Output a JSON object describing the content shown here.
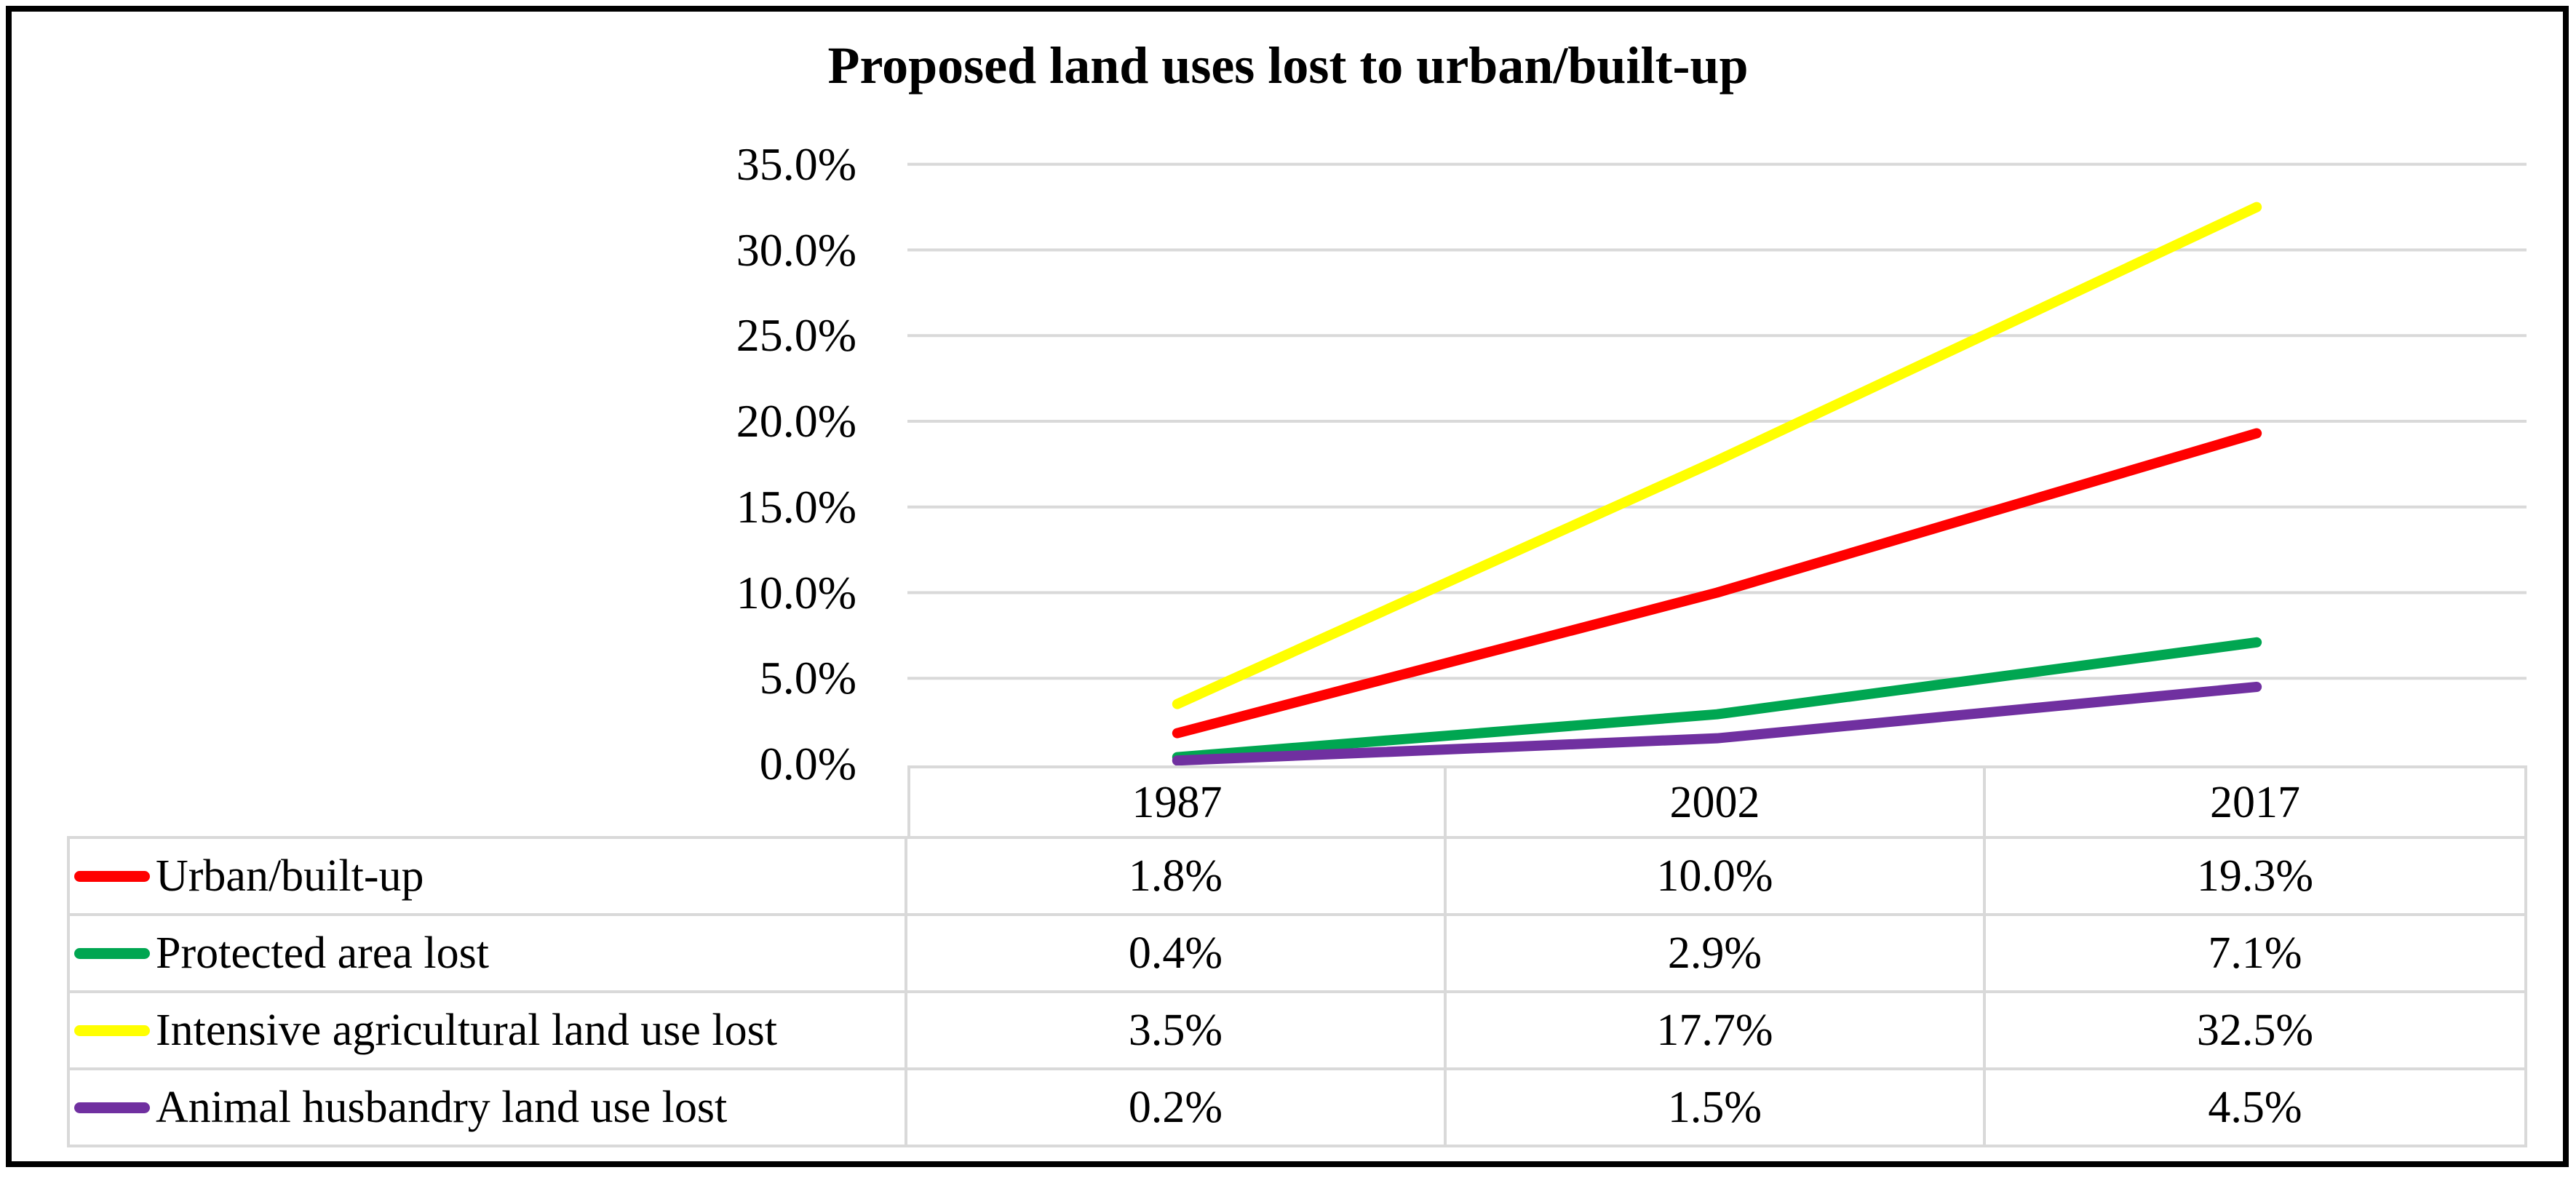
{
  "title": "Proposed land uses lost to urban/built-up",
  "frame_color": "#000000",
  "chart_data": {
    "type": "line",
    "title": "Proposed land uses lost to urban/built-up",
    "categories": [
      "1987",
      "2002",
      "2017"
    ],
    "series": [
      {
        "name": "Urban/built-up",
        "color": "#FF0000",
        "values": [
          1.8,
          10.0,
          19.3
        ]
      },
      {
        "name": "Protected area lost",
        "color": "#00A651",
        "values": [
          0.4,
          2.9,
          7.1
        ]
      },
      {
        "name": "Intensive agricultural land use lost",
        "color": "#FFFF00",
        "values": [
          3.5,
          17.7,
          32.5
        ]
      },
      {
        "name": "Animal husbandry land use lost",
        "color": "#7030A0",
        "values": [
          0.2,
          1.5,
          4.5
        ]
      }
    ],
    "table_values": [
      [
        "1.8%",
        "10.0%",
        "19.3%"
      ],
      [
        "0.4%",
        "2.9%",
        "7.1%"
      ],
      [
        "3.5%",
        "17.7%",
        "32.5%"
      ],
      [
        "0.2%",
        "1.5%",
        "4.5%"
      ]
    ],
    "xlabel": "",
    "ylabel": "",
    "ylim": [
      0,
      35
    ],
    "ytick_values": [
      0,
      5,
      10,
      15,
      20,
      25,
      30,
      35
    ],
    "ytick_labels": [
      "0.0%",
      "5.0%",
      "10.0%",
      "15.0%",
      "20.0%",
      "25.0%",
      "30.0%",
      "35.0%"
    ],
    "grid": true,
    "grid_color": "#D9D9D9",
    "legend_position": "data-table-left"
  }
}
